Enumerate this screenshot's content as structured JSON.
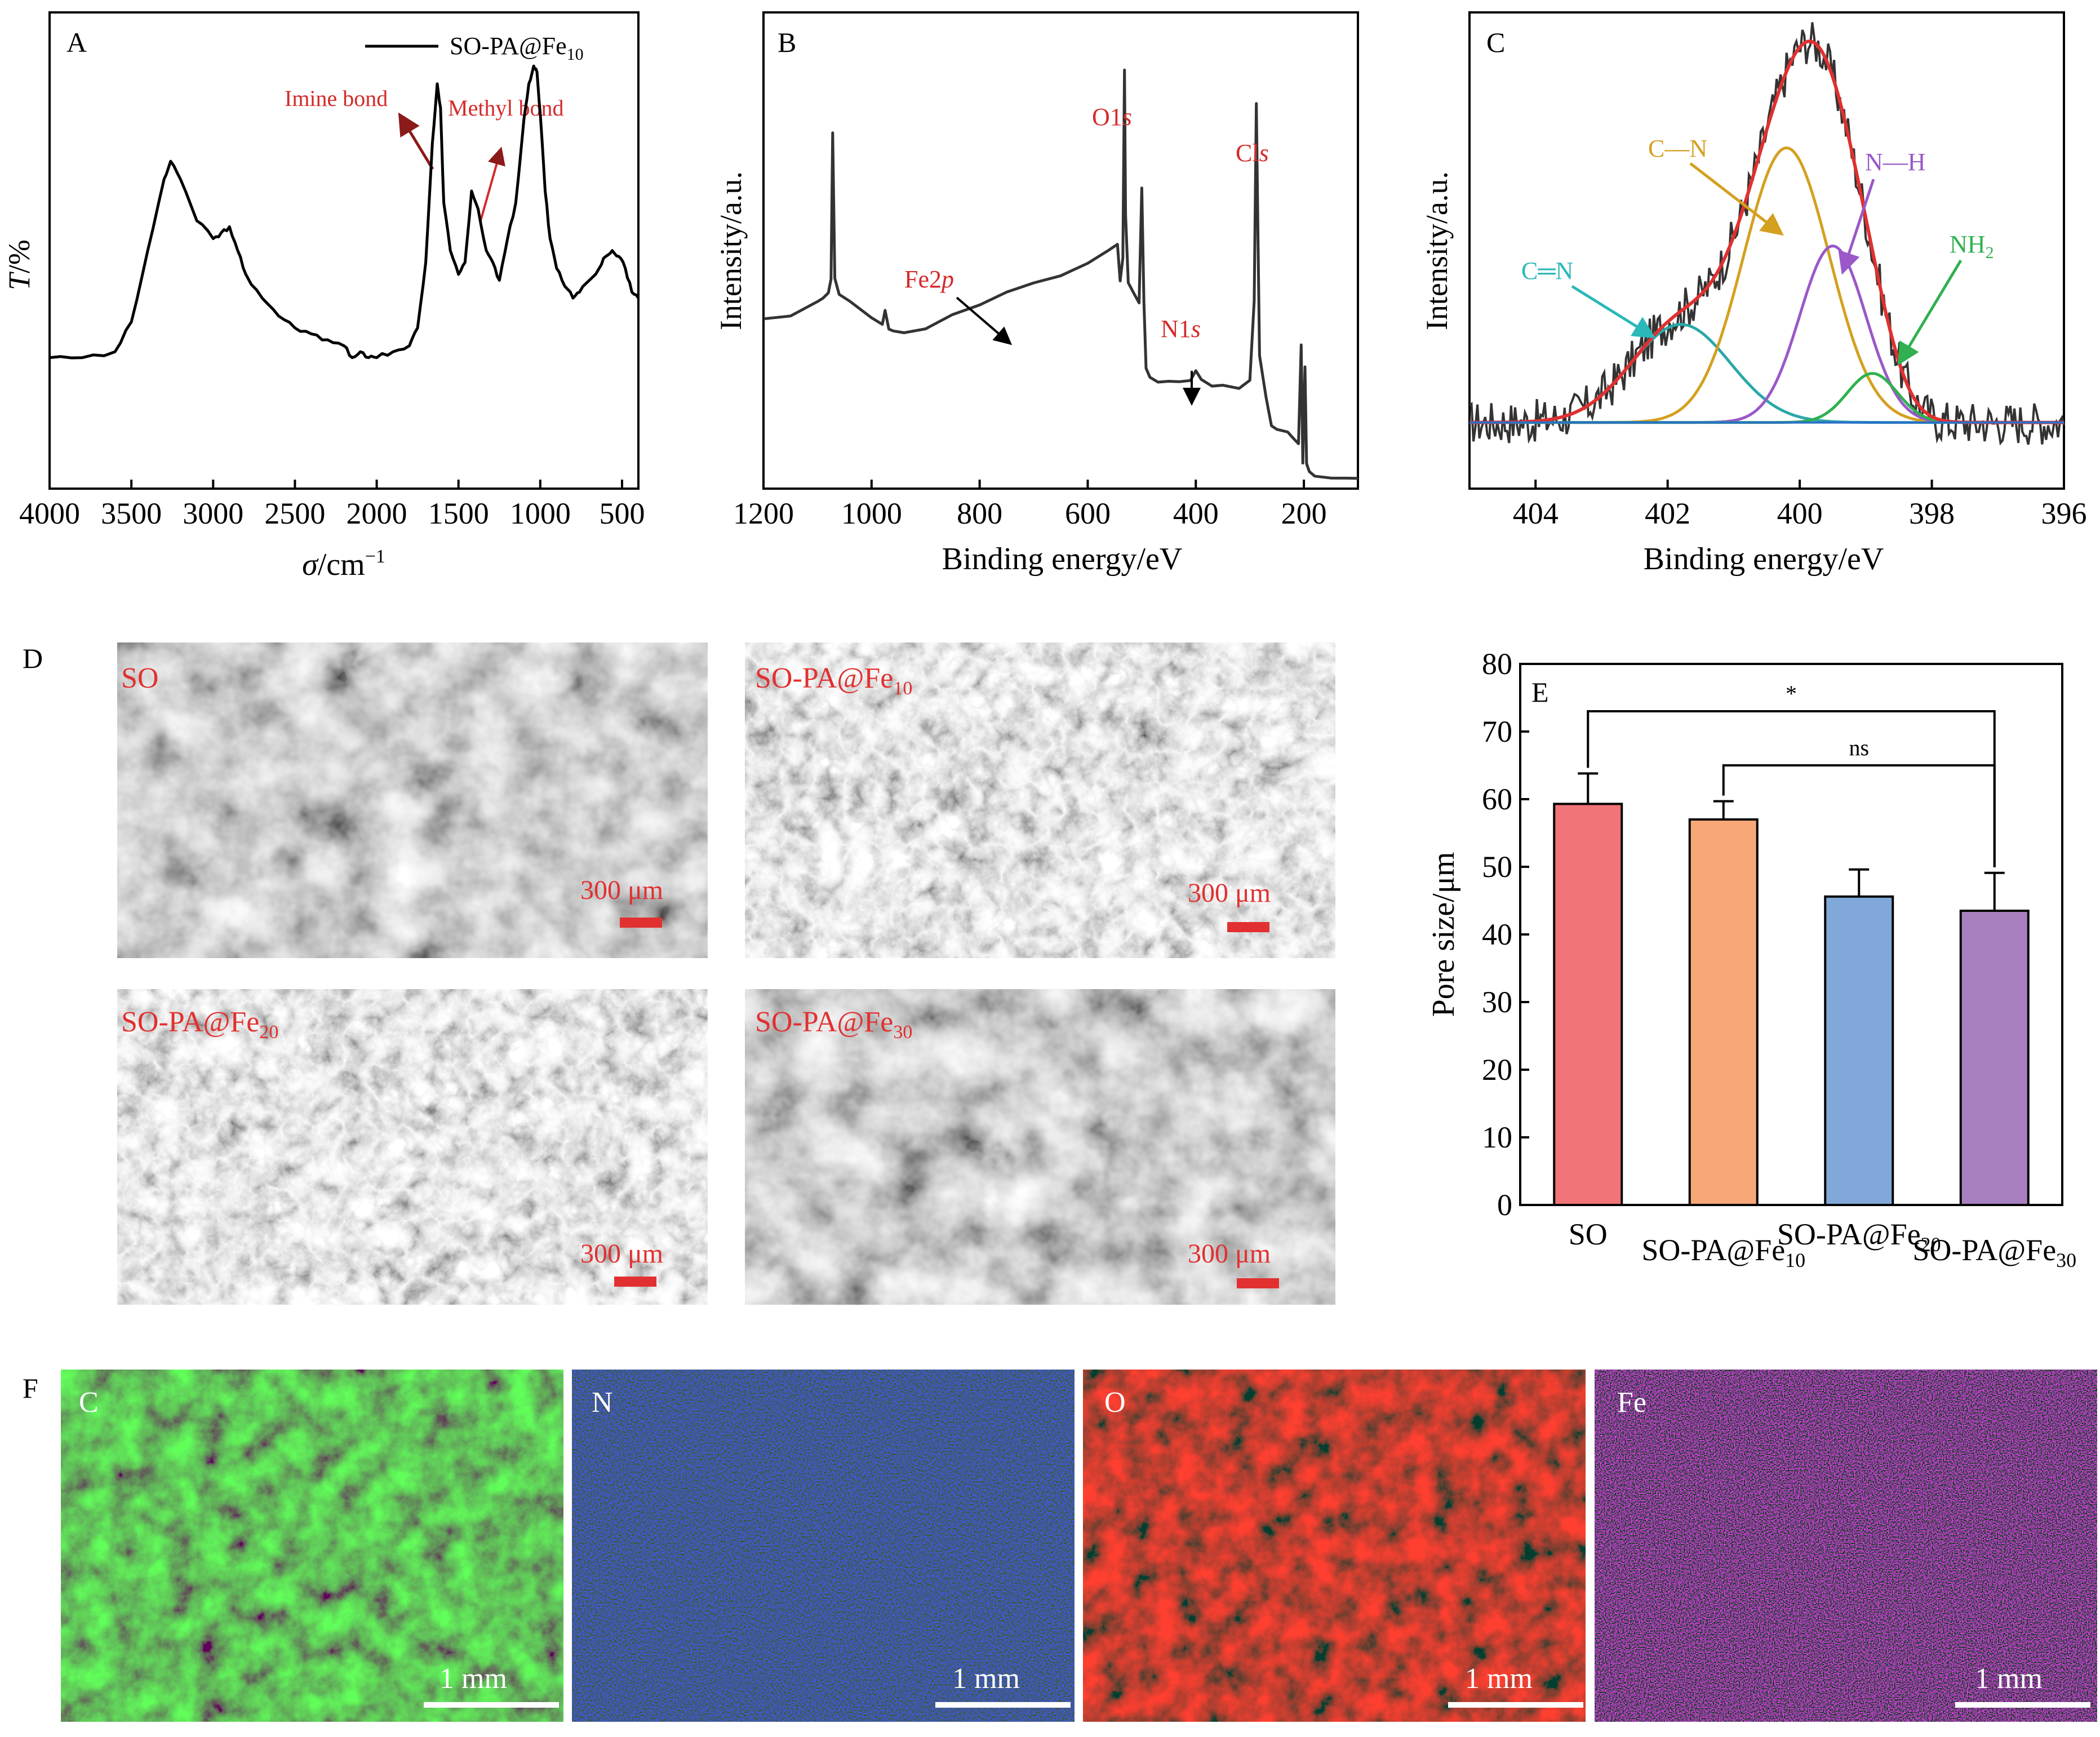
{
  "panels": {
    "A": {
      "letter": "A",
      "legend": "SO-PA@Fe",
      "legend_sub": "10",
      "ylabel_italic": "T",
      "ylabel_rest": "/%",
      "xlabel_sym": "σ",
      "xlabel_rest": "/cm",
      "xlabel_sup": "−1",
      "ann_imine": "Imine bond",
      "ann_methyl": "Methyl bond"
    },
    "B": {
      "letter": "B",
      "ylabel": "Intensity/a.u.",
      "xlabel": "Binding energy/eV",
      "peaks": [
        {
          "pre": "O1",
          "it": "s"
        },
        {
          "pre": "Cl",
          "it": "s"
        },
        {
          "pre": "N1",
          "it": "s"
        },
        {
          "pre": "Fe2",
          "it": "p"
        }
      ]
    },
    "C": {
      "letter": "C",
      "ylabel": "Intensity/a.u.",
      "xlabel": "Binding energy/eV",
      "comp_cn": "C—N",
      "comp_nh": "N—H",
      "comp_c_eq_n": "C═N",
      "comp_nh2": "NH",
      "comp_nh2_sub": "2"
    },
    "D": {
      "letter": "D",
      "images": [
        {
          "label": "SO",
          "sub": "",
          "scale": "300 μm"
        },
        {
          "label": "SO-PA@Fe",
          "sub": "10",
          "scale": "300 μm"
        },
        {
          "label": "SO-PA@Fe",
          "sub": "20",
          "scale": "300 μm"
        },
        {
          "label": "SO-PA@Fe",
          "sub": "30",
          "scale": "300 μm"
        }
      ]
    },
    "E": {
      "letter": "E",
      "ylabel": "Pore size/μm",
      "sig_1": "*",
      "sig_2": "ns"
    },
    "F": {
      "letter": "F",
      "maps": [
        {
          "element": "C",
          "scale": "1 mm",
          "color": "#3ec83a"
        },
        {
          "element": "N",
          "scale": "1 mm",
          "color": "#3a5cd8"
        },
        {
          "element": "O",
          "scale": "1 mm",
          "color": "#e8322a"
        },
        {
          "element": "Fe",
          "scale": "1 mm",
          "color": "#c84ad8"
        }
      ]
    }
  },
  "chart_data": [
    {
      "panel": "A",
      "type": "line",
      "xlabel": "σ/cm−1",
      "ylabel": "T/%",
      "xlim": [
        4000,
        400
      ],
      "xticks": [
        4000,
        3500,
        3000,
        2500,
        2000,
        1500,
        1000,
        500
      ],
      "series": [
        {
          "name": "SO-PA@Fe10",
          "color": "#000000",
          "x": [
            4000,
            3800,
            3600,
            3500,
            3400,
            3300,
            3260,
            3200,
            3100,
            3000,
            2950,
            2900,
            2850,
            2800,
            2700,
            2600,
            2500,
            2400,
            2300,
            2200,
            2150,
            2100,
            2050,
            2000,
            1900,
            1800,
            1750,
            1700,
            1660,
            1630,
            1610,
            1590,
            1550,
            1500,
            1460,
            1420,
            1380,
            1330,
            1290,
            1250,
            1200,
            1150,
            1100,
            1070,
            1040,
            1020,
            1000,
            970,
            940,
            900,
            850,
            800,
            760,
            700,
            640,
            600,
            560,
            520,
            480,
            440,
            400
          ],
          "y": [
            0.22,
            0.22,
            0.23,
            0.28,
            0.4,
            0.52,
            0.55,
            0.52,
            0.45,
            0.42,
            0.43,
            0.44,
            0.4,
            0.36,
            0.32,
            0.29,
            0.27,
            0.26,
            0.25,
            0.24,
            0.22,
            0.23,
            0.22,
            0.22,
            0.23,
            0.24,
            0.27,
            0.38,
            0.58,
            0.68,
            0.64,
            0.48,
            0.4,
            0.36,
            0.38,
            0.5,
            0.47,
            0.4,
            0.38,
            0.35,
            0.42,
            0.48,
            0.62,
            0.68,
            0.71,
            0.7,
            0.63,
            0.5,
            0.42,
            0.37,
            0.34,
            0.32,
            0.33,
            0.35,
            0.37,
            0.39,
            0.4,
            0.39,
            0.37,
            0.33,
            0.32
          ]
        }
      ]
    },
    {
      "panel": "B",
      "type": "line",
      "xlabel": "Binding energy/eV",
      "ylabel": "Intensity/a.u.",
      "xlim": [
        1200,
        100
      ],
      "xticks": [
        1200,
        1000,
        800,
        600,
        400,
        200
      ],
      "series": [
        {
          "name": "survey",
          "color": "#333333",
          "x": [
            1200,
            1150,
            1100,
            1090,
            1080,
            1075,
            1072,
            1068,
            1060,
            1040,
            1000,
            980,
            975,
            968,
            960,
            940,
            900,
            850,
            800,
            750,
            700,
            650,
            600,
            560,
            545,
            540,
            535,
            532,
            530,
            525,
            515,
            505,
            500,
            496,
            492,
            485,
            470,
            450,
            430,
            410,
            400,
            390,
            370,
            350,
            320,
            300,
            292,
            288,
            285,
            282,
            270,
            260,
            250,
            230,
            220,
            210,
            205,
            202,
            198,
            195,
            190,
            180,
            150,
            120,
            100
          ],
          "y": [
            0.36,
            0.37,
            0.4,
            0.41,
            0.42,
            0.45,
            0.78,
            0.45,
            0.42,
            0.4,
            0.36,
            0.35,
            0.38,
            0.34,
            0.33,
            0.33,
            0.34,
            0.37,
            0.39,
            0.42,
            0.44,
            0.46,
            0.49,
            0.52,
            0.53,
            0.45,
            0.5,
            0.93,
            0.6,
            0.44,
            0.42,
            0.4,
            0.66,
            0.4,
            0.25,
            0.23,
            0.22,
            0.22,
            0.22,
            0.22,
            0.24,
            0.22,
            0.21,
            0.21,
            0.2,
            0.22,
            0.4,
            0.85,
            0.55,
            0.28,
            0.18,
            0.12,
            0.11,
            0.1,
            0.09,
            0.08,
            0.3,
            0.03,
            0.25,
            0.03,
            0.01,
            0.0,
            0.0,
            0.0,
            0.0
          ]
        }
      ]
    },
    {
      "panel": "C",
      "type": "line",
      "xlabel": "Binding energy/eV",
      "ylabel": "Intensity/a.u.",
      "xlim": [
        405,
        396
      ],
      "xticks": [
        404,
        402,
        400,
        398,
        396
      ],
      "series": [
        {
          "name": "raw",
          "color": "#333333",
          "type": "noisy",
          "from": 405,
          "to": 396
        },
        {
          "name": "C═N",
          "color": "#2aa8a8",
          "center": 401.8,
          "sigma": 0.75,
          "amplitude": 0.2
        },
        {
          "name": "C—N",
          "color": "#d4a020",
          "center": 400.2,
          "sigma": 0.65,
          "amplitude": 0.56
        },
        {
          "name": "N—H",
          "color": "#9a58c8",
          "center": 399.5,
          "sigma": 0.5,
          "amplitude": 0.36
        },
        {
          "name": "NH2",
          "color": "#30b050",
          "center": 398.9,
          "sigma": 0.38,
          "amplitude": 0.1
        },
        {
          "name": "envelope",
          "color": "#e03030",
          "type": "sum"
        }
      ]
    },
    {
      "panel": "E",
      "type": "bar",
      "ylabel": "Pore size/μm",
      "ylim": [
        0,
        80
      ],
      "yticks": [
        0,
        10,
        20,
        30,
        40,
        50,
        60,
        70,
        80
      ],
      "categories": [
        "SO",
        "SO-PA@Fe10",
        "SO-PA@Fe20",
        "SO-PA@Fe30"
      ],
      "values": [
        59.3,
        57.0,
        45.6,
        43.5
      ],
      "errors": [
        4.5,
        2.7,
        4.0,
        5.6
      ],
      "colors": [
        "#f07478",
        "#f8a878",
        "#80a8d8",
        "#a880c0"
      ],
      "significance": [
        {
          "from": 0,
          "to": 3,
          "label": "*",
          "y": 73
        },
        {
          "from": 1,
          "to": 3,
          "label": "ns",
          "y": 65
        }
      ]
    }
  ]
}
